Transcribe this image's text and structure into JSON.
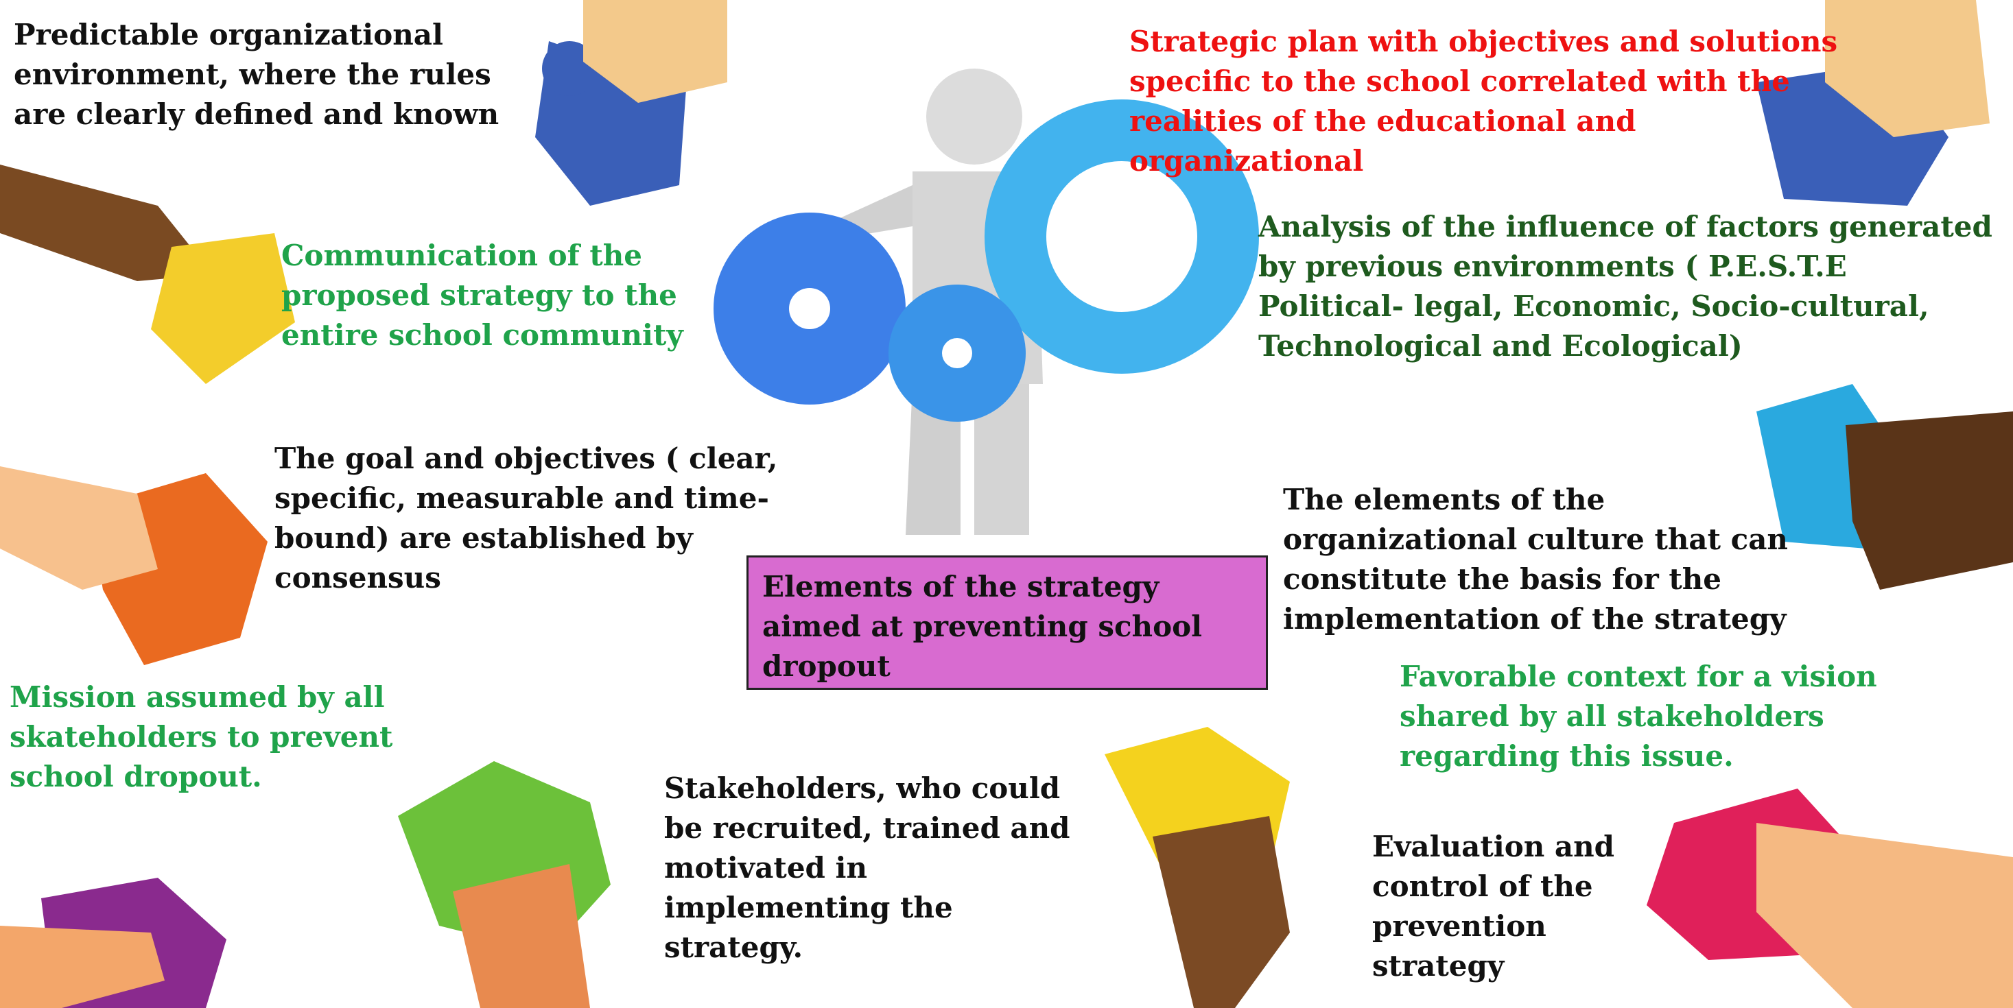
{
  "center_label": "Elements of the strategy aimed at preventing school dropout",
  "labels": {
    "predictable": "Predictable organizational environment, where the rules are clearly defined and known",
    "communication": "Communication of the proposed strategy to the entire school community",
    "goal": "The goal and objectives ( clear, specific, measurable and time-bound) are established by consensus",
    "mission": "Mission assumed by all skateholders to prevent school dropout.",
    "stakeholders": "Stakeholders, who could be recruited, trained and motivated in implementing the strategy.",
    "evaluation": "Evaluation and control of the prevention strategy",
    "favorable": "Favorable context for a vision shared by all stakeholders regarding this issue.",
    "culture": "The elements of the organizational culture that can constitute the basis for the implementation of the strategy",
    "analysis": "Analysis of the influence of factors generated by previous environments ( P.E.S.T.E Political- legal, Economic, Socio-cultural, Technological and Ecological)",
    "strategic": "Strategic plan with objectives and solutions specific to the school correlated with the realities of the educational and organizational"
  },
  "colors": {
    "center_fill": "#d86bd0",
    "green_text": "#1fa34a",
    "dark_green_text": "#1e5a1e",
    "red_text": "#ee1111",
    "black_text": "#111111"
  }
}
